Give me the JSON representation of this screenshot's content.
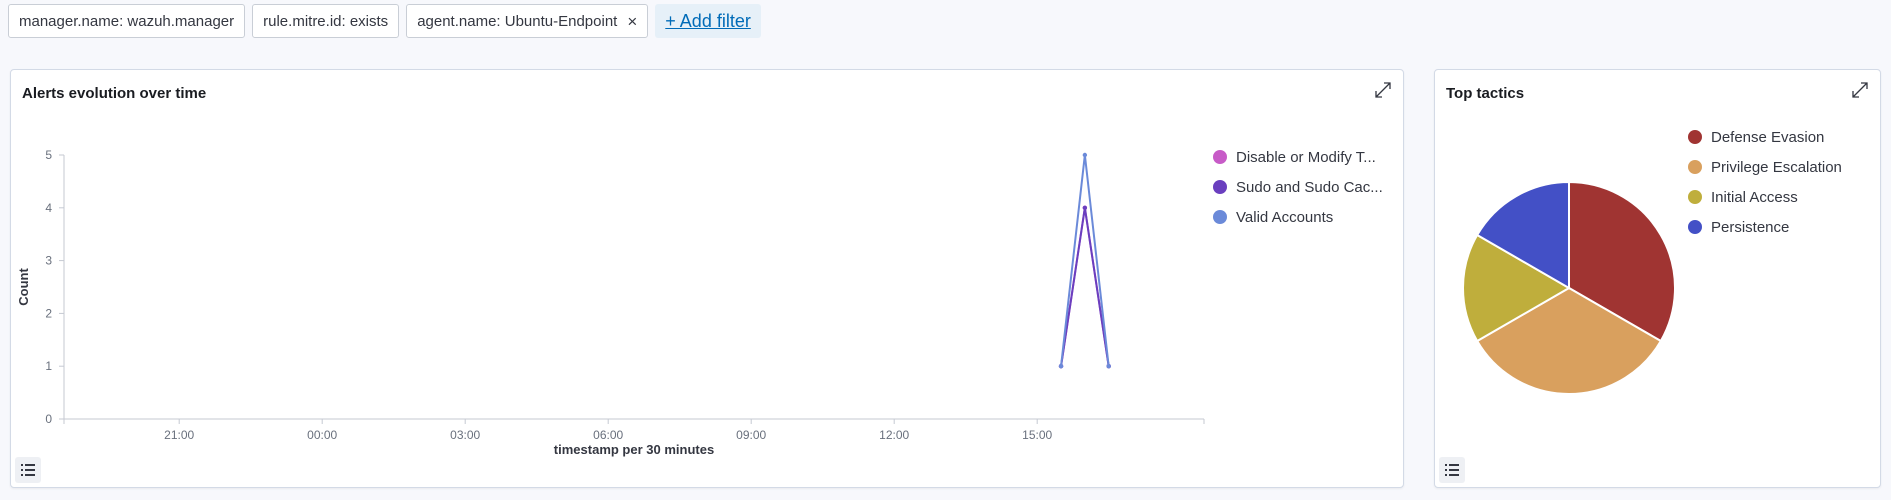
{
  "filters": [
    {
      "label": "manager.name: wazuh.manager",
      "removable": false
    },
    {
      "label": "rule.mitre.id: exists",
      "removable": false
    },
    {
      "label": "agent.name: Ubuntu-Endpoint",
      "removable": true
    }
  ],
  "filter_close_glyph": "×",
  "add_filter_label": "+ Add filter",
  "panels": {
    "alerts": {
      "title": "Alerts evolution over time",
      "legend": [
        {
          "label": "Disable or Modify T...",
          "color": "#c75bc7"
        },
        {
          "label": "Sudo and Sudo Cac...",
          "color": "#6a3fbf"
        },
        {
          "label": "Valid Accounts",
          "color": "#6b8ad9"
        }
      ]
    },
    "tactics": {
      "title": "Top tactics",
      "legend": [
        {
          "label": "Defense Evasion",
          "color": "#a03432"
        },
        {
          "label": "Privilege Escalation",
          "color": "#d9a05e"
        },
        {
          "label": "Initial Access",
          "color": "#bfae3c"
        },
        {
          "label": "Persistence",
          "color": "#4350c6"
        }
      ]
    }
  },
  "chart_data": [
    {
      "type": "line",
      "xlabel": "timestamp per 30 minutes",
      "ylabel": "Count",
      "ylim": [
        0,
        5
      ],
      "yticks": [
        "0",
        "1",
        "2",
        "3",
        "4",
        "5"
      ],
      "xticks": [
        "21:00",
        "00:00",
        "03:00",
        "06:00",
        "09:00",
        "12:00",
        "15:00"
      ],
      "x": [
        "15:30",
        "16:00",
        "16:30"
      ],
      "series": [
        {
          "name": "Disable or Modify T...",
          "values": [
            1,
            4,
            1
          ],
          "color": "#c75bc7"
        },
        {
          "name": "Sudo and Sudo Cac...",
          "values": [
            1,
            4,
            1
          ],
          "color": "#6a3fbf"
        },
        {
          "name": "Valid Accounts",
          "values": [
            1,
            5,
            1
          ],
          "color": "#6b8ad9"
        }
      ],
      "legend_position": "right"
    },
    {
      "type": "pie",
      "categories": [
        "Defense Evasion",
        "Privilege Escalation",
        "Initial Access",
        "Persistence"
      ],
      "values": [
        4,
        4,
        2,
        2
      ],
      "colors": [
        "#a03432",
        "#d9a05e",
        "#bfae3c",
        "#4350c6"
      ],
      "legend_position": "right"
    }
  ]
}
